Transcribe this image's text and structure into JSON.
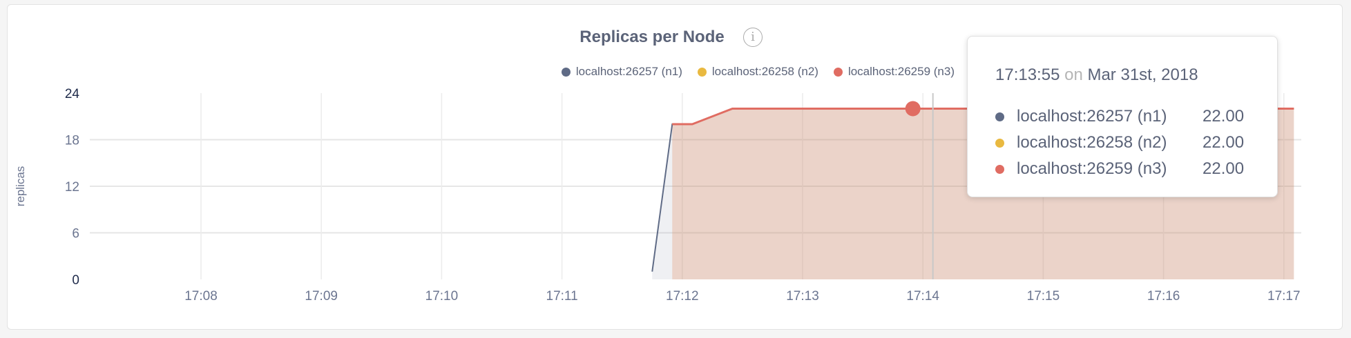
{
  "chart_data": {
    "type": "area",
    "title": "Replicas per Node",
    "ylabel": "replicas",
    "xlabel": "",
    "ylim": [
      0,
      24
    ],
    "yticks": [
      "0",
      "6",
      "12",
      "18",
      "24"
    ],
    "xticks": [
      "17:08",
      "17:09",
      "17:10",
      "17:11",
      "17:12",
      "17:13",
      "17:14",
      "17:15",
      "17:16",
      "17:17"
    ],
    "grid": true,
    "legend_position": "top-right",
    "series": [
      {
        "name": "localhost:26257 (n1)",
        "color": "#5f6b86",
        "points": [
          [
            "17:11:45",
            1
          ],
          [
            "17:11:55",
            20
          ],
          [
            "17:12:05",
            20
          ],
          [
            "17:12:25",
            22
          ],
          [
            "17:17:05",
            22
          ]
        ]
      },
      {
        "name": "localhost:26258 (n2)",
        "color": "#e9b940",
        "points": [
          [
            "17:11:55",
            20
          ],
          [
            "17:12:05",
            20
          ],
          [
            "17:12:25",
            22
          ],
          [
            "17:17:05",
            22
          ]
        ]
      },
      {
        "name": "localhost:26259 (n3)",
        "color": "#e06c62",
        "points": [
          [
            "17:11:55",
            20
          ],
          [
            "17:12:05",
            20
          ],
          [
            "17:12:25",
            22
          ],
          [
            "17:17:05",
            22
          ]
        ]
      }
    ],
    "hover": {
      "time": "17:13:55",
      "value": 22
    }
  },
  "info_icon": "info-icon",
  "tooltip": {
    "time": "17:13:55",
    "on": "on",
    "date": "Mar 31st, 2018",
    "rows": [
      {
        "label": "localhost:26257 (n1)",
        "value": "22.00",
        "color": "#5f6b86"
      },
      {
        "label": "localhost:26258 (n2)",
        "value": "22.00",
        "color": "#e9b940"
      },
      {
        "label": "localhost:26259 (n3)",
        "value": "22.00",
        "color": "#e06c62"
      }
    ]
  }
}
